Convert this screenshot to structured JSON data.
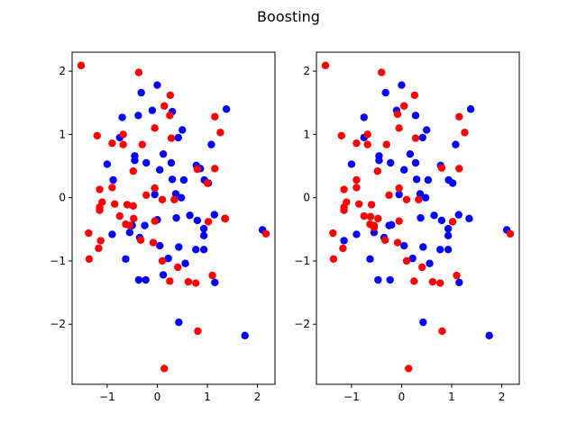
{
  "figure": {
    "title": "Boosting"
  },
  "chart_data": [
    {
      "type": "scatter",
      "title": "",
      "xlabel": "",
      "ylabel": "",
      "xlim": [
        -1.7,
        2.35
      ],
      "ylim": [
        -2.95,
        2.3
      ],
      "xticks": [
        -1,
        0,
        1,
        2
      ],
      "yticks": [
        -2,
        -1,
        0,
        1,
        2
      ],
      "xtick_labels": [
        "−1",
        "0",
        "1",
        "2"
      ],
      "ytick_labels": [
        "−2",
        "−1",
        "0",
        "1",
        "2"
      ],
      "grid": false,
      "series": [
        {
          "color": "#0000ff",
          "points": [
            [
              0.0,
              1.78
            ],
            [
              -0.32,
              1.66
            ],
            [
              1.38,
              1.4
            ],
            [
              -0.1,
              1.38
            ],
            [
              -0.7,
              1.27
            ],
            [
              -0.38,
              1.3
            ],
            [
              0.3,
              1.36
            ],
            [
              0.5,
              1.07
            ],
            [
              -0.75,
              0.95
            ],
            [
              0.42,
              0.95
            ],
            [
              1.08,
              0.84
            ],
            [
              0.12,
              0.69
            ],
            [
              -0.45,
              0.66
            ],
            [
              -0.45,
              0.59
            ],
            [
              -0.22,
              0.55
            ],
            [
              0.28,
              0.55
            ],
            [
              0.05,
              0.44
            ],
            [
              -1.0,
              0.53
            ],
            [
              0.53,
              0.28
            ],
            [
              -0.88,
              0.28
            ],
            [
              0.94,
              0.28
            ],
            [
              0.3,
              0.29
            ],
            [
              0.78,
              0.51
            ],
            [
              0.86,
              0.46
            ],
            [
              1.02,
              0.23
            ],
            [
              0.37,
              0.06
            ],
            [
              -0.05,
              0.05
            ],
            [
              0.48,
              0.0
            ],
            [
              0.65,
              -0.28
            ],
            [
              0.38,
              -0.32
            ],
            [
              0.8,
              -0.36
            ],
            [
              1.14,
              -0.27
            ],
            [
              1.35,
              -0.33
            ],
            [
              0.0,
              -0.35
            ],
            [
              -0.5,
              -0.44
            ],
            [
              -0.25,
              -0.44
            ],
            [
              -0.55,
              -0.55
            ],
            [
              0.93,
              -0.49
            ],
            [
              0.93,
              -0.6
            ],
            [
              -0.9,
              -0.58
            ],
            [
              -0.35,
              -0.63
            ],
            [
              0.05,
              -0.76
            ],
            [
              0.43,
              -0.78
            ],
            [
              0.77,
              -0.82
            ],
            [
              0.93,
              -0.82
            ],
            [
              -0.63,
              -0.97
            ],
            [
              0.22,
              -0.96
            ],
            [
              0.56,
              -1.04
            ],
            [
              -0.37,
              -1.3
            ],
            [
              -0.23,
              -1.3
            ],
            [
              0.12,
              -1.22
            ],
            [
              1.15,
              -1.34
            ],
            [
              2.1,
              -0.51
            ],
            [
              0.43,
              -1.97
            ],
            [
              1.75,
              -2.18
            ]
          ]
        },
        {
          "color": "#ff0000",
          "points": [
            [
              -1.52,
              2.09
            ],
            [
              -0.37,
              1.98
            ],
            [
              0.26,
              1.62
            ],
            [
              0.14,
              1.45
            ],
            [
              -1.2,
              0.98
            ],
            [
              -0.68,
              0.84
            ],
            [
              -0.3,
              0.84
            ],
            [
              -0.9,
              0.86
            ],
            [
              -0.68,
              1.0
            ],
            [
              -0.05,
              1.1
            ],
            [
              1.15,
              1.28
            ],
            [
              0.25,
              1.3
            ],
            [
              0.28,
              0.94
            ],
            [
              1.26,
              1.03
            ],
            [
              -0.48,
              0.42
            ],
            [
              0.8,
              0.45
            ],
            [
              1.15,
              0.46
            ],
            [
              -0.9,
              0.16
            ],
            [
              -1.15,
              0.13
            ],
            [
              -0.48,
              -0.13
            ],
            [
              -0.22,
              0.04
            ],
            [
              -0.05,
              0.15
            ],
            [
              0.1,
              -0.03
            ],
            [
              0.34,
              -0.03
            ],
            [
              1.0,
              0.23
            ],
            [
              -1.1,
              -0.07
            ],
            [
              -1.15,
              -0.15
            ],
            [
              -0.85,
              -0.1
            ],
            [
              -1.15,
              -0.2
            ],
            [
              -0.6,
              -0.11
            ],
            [
              -0.75,
              -0.29
            ],
            [
              -0.63,
              -0.42
            ],
            [
              -0.47,
              -0.33
            ],
            [
              -0.55,
              -0.44
            ],
            [
              -0.05,
              -0.37
            ],
            [
              1.02,
              -0.38
            ],
            [
              1.36,
              -0.33
            ],
            [
              -1.37,
              -0.56
            ],
            [
              -0.33,
              -0.67
            ],
            [
              -1.13,
              -0.68
            ],
            [
              -0.08,
              -0.71
            ],
            [
              -1.17,
              -0.8
            ],
            [
              0.1,
              -1.0
            ],
            [
              0.41,
              -1.1
            ],
            [
              0.25,
              -1.32
            ],
            [
              0.62,
              -1.33
            ],
            [
              0.77,
              -1.35
            ],
            [
              1.1,
              -1.23
            ],
            [
              -1.36,
              -0.97
            ],
            [
              2.17,
              -0.57
            ],
            [
              0.81,
              -2.11
            ],
            [
              0.14,
              -2.7
            ]
          ]
        }
      ]
    },
    {
      "type": "scatter",
      "title": "",
      "xlabel": "",
      "ylabel": "",
      "xlim": [
        -1.7,
        2.35
      ],
      "ylim": [
        -2.95,
        2.3
      ],
      "xticks": [
        -1,
        0,
        1,
        2
      ],
      "yticks": [
        -2,
        -1,
        0,
        1,
        2
      ],
      "xtick_labels": [
        "−1",
        "0",
        "1",
        "2"
      ],
      "ytick_labels": [
        "−2",
        "−1",
        "0",
        "1",
        "2"
      ],
      "grid": false,
      "series": [
        {
          "color": "#0000ff",
          "points": [
            [
              0.0,
              1.78
            ],
            [
              -0.32,
              1.66
            ],
            [
              1.38,
              1.4
            ],
            [
              -0.1,
              1.38
            ],
            [
              -0.75,
              1.27
            ],
            [
              0.28,
              1.3
            ],
            [
              0.5,
              1.07
            ],
            [
              -0.75,
              0.95
            ],
            [
              0.42,
              0.95
            ],
            [
              1.08,
              0.84
            ],
            [
              0.17,
              0.69
            ],
            [
              -0.45,
              0.66
            ],
            [
              -0.45,
              0.59
            ],
            [
              -0.22,
              0.55
            ],
            [
              0.28,
              0.55
            ],
            [
              0.05,
              0.44
            ],
            [
              -1.0,
              0.53
            ],
            [
              0.53,
              0.28
            ],
            [
              0.94,
              0.28
            ],
            [
              0.3,
              0.29
            ],
            [
              0.78,
              0.51
            ],
            [
              1.02,
              0.23
            ],
            [
              0.37,
              0.06
            ],
            [
              -0.05,
              0.05
            ],
            [
              0.48,
              0.0
            ],
            [
              0.65,
              -0.28
            ],
            [
              0.38,
              -0.32
            ],
            [
              0.8,
              -0.36
            ],
            [
              1.14,
              -0.27
            ],
            [
              1.35,
              -0.33
            ],
            [
              -0.25,
              -0.44
            ],
            [
              -0.55,
              -0.55
            ],
            [
              0.93,
              -0.49
            ],
            [
              0.93,
              -0.6
            ],
            [
              -0.9,
              -0.58
            ],
            [
              -0.35,
              -0.63
            ],
            [
              -1.15,
              -0.68
            ],
            [
              0.05,
              -0.76
            ],
            [
              0.43,
              -0.78
            ],
            [
              0.77,
              -0.82
            ],
            [
              0.93,
              -0.82
            ],
            [
              -0.63,
              -0.97
            ],
            [
              0.22,
              -0.96
            ],
            [
              0.56,
              -1.04
            ],
            [
              -0.47,
              -1.3
            ],
            [
              -0.23,
              -1.3
            ],
            [
              1.15,
              -1.34
            ],
            [
              2.1,
              -0.51
            ],
            [
              0.43,
              -1.97
            ],
            [
              1.75,
              -2.18
            ],
            [
              -0.2,
              -0.43
            ]
          ]
        },
        {
          "color": "#ff0000",
          "points": [
            [
              -1.52,
              2.09
            ],
            [
              -0.4,
              1.98
            ],
            [
              0.26,
              1.62
            ],
            [
              0.05,
              1.45
            ],
            [
              -1.2,
              0.98
            ],
            [
              -0.68,
              0.84
            ],
            [
              -0.3,
              0.84
            ],
            [
              -0.9,
              0.86
            ],
            [
              -0.68,
              1.0
            ],
            [
              -0.05,
              1.1
            ],
            [
              1.15,
              1.28
            ],
            [
              -0.08,
              1.32
            ],
            [
              0.28,
              0.94
            ],
            [
              1.26,
              1.03
            ],
            [
              -0.48,
              0.42
            ],
            [
              0.8,
              0.47
            ],
            [
              1.15,
              0.46
            ],
            [
              -0.9,
              0.16
            ],
            [
              -1.15,
              0.13
            ],
            [
              -0.9,
              0.28
            ],
            [
              -0.25,
              0.04
            ],
            [
              -0.05,
              0.15
            ],
            [
              0.1,
              -0.03
            ],
            [
              0.34,
              -0.03
            ],
            [
              -1.1,
              -0.07
            ],
            [
              -1.15,
              -0.15
            ],
            [
              -0.85,
              -0.1
            ],
            [
              -1.15,
              -0.2
            ],
            [
              -0.6,
              -0.11
            ],
            [
              -0.75,
              -0.29
            ],
            [
              -0.63,
              -0.42
            ],
            [
              -0.47,
              -0.33
            ],
            [
              -0.55,
              -0.44
            ],
            [
              -0.05,
              -0.37
            ],
            [
              1.02,
              -0.38
            ],
            [
              -1.37,
              -0.56
            ],
            [
              -0.33,
              -0.67
            ],
            [
              -0.08,
              -0.71
            ],
            [
              -1.17,
              -0.8
            ],
            [
              0.1,
              -1.0
            ],
            [
              0.41,
              -1.1
            ],
            [
              0.25,
              -1.32
            ],
            [
              0.62,
              -1.33
            ],
            [
              0.77,
              -1.35
            ],
            [
              1.1,
              -1.23
            ],
            [
              -1.36,
              -0.97
            ],
            [
              2.17,
              -0.57
            ],
            [
              0.81,
              -2.11
            ],
            [
              0.14,
              -2.7
            ],
            [
              -0.55,
              -0.47
            ],
            [
              -0.62,
              -0.3
            ]
          ]
        }
      ]
    }
  ]
}
